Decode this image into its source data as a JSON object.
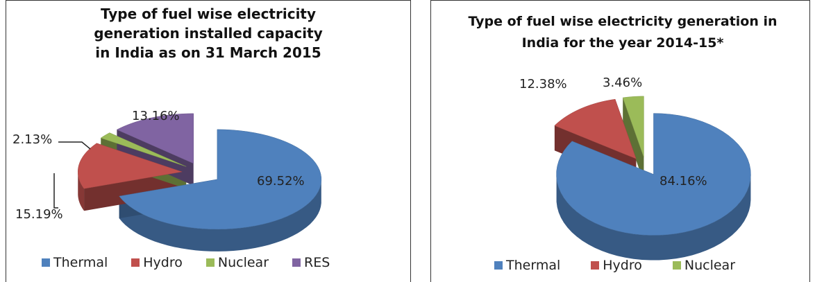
{
  "chart_data": [
    {
      "type": "pie",
      "title": "Type of fuel wise electricity generation installed capacity in India as on 31 March 2015",
      "categories": [
        "Thermal",
        "Hydro",
        "Nuclear",
        "RES"
      ],
      "values": [
        69.52,
        15.19,
        2.13,
        13.16
      ],
      "value_labels": [
        "69.52%",
        "15.19%",
        "2.13%",
        "13.16%"
      ],
      "colors": [
        "#4f81bd",
        "#c0504d",
        "#9bbb59",
        "#8064a2"
      ],
      "legend": "bottom"
    },
    {
      "type": "pie",
      "title": "Type of fuel wise electricity generation in India for the year 2014-15*",
      "categories": [
        "Thermal",
        "Hydro",
        "Nuclear"
      ],
      "values": [
        84.16,
        12.38,
        3.46
      ],
      "value_labels": [
        "84.16%",
        "12.38%",
        "3.46%"
      ],
      "colors": [
        "#4f81bd",
        "#c0504d",
        "#9bbb59"
      ],
      "legend": "bottom"
    }
  ]
}
